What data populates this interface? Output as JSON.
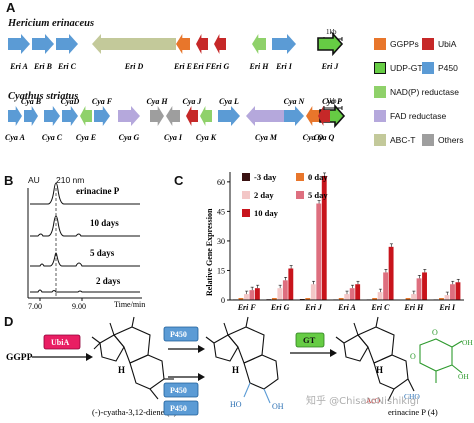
{
  "panels": {
    "a": "A",
    "b": "B",
    "c": "C",
    "d": "D"
  },
  "colors": {
    "GGPPs": "#e8762b",
    "UbiA": "#c62828",
    "UDP-GT": "#66cc44",
    "P450": "#5b9bd5",
    "NAD(P) reductase": "#8fd16a",
    "FAD reductase": "#b5a8dc",
    "ABC-T": "#c3c99a",
    "Others": "#9e9e9e"
  },
  "panel_a": {
    "scale_label": "1kb",
    "species": [
      {
        "name": "Hericium erinaceus",
        "genes": [
          {
            "id": "EriA",
            "label": "Eri A",
            "family": "P450",
            "dir": "right"
          },
          {
            "id": "EriB",
            "label": "Eri B",
            "family": "P450",
            "dir": "right"
          },
          {
            "id": "EriC",
            "label": "Eri C",
            "family": "P450",
            "dir": "right"
          },
          {
            "id": "EriD",
            "label": "Eri D",
            "family": "ABC-T",
            "dir": "left"
          },
          {
            "id": "EriE",
            "label": "Eri E",
            "family": "GGPPs",
            "dir": "left"
          },
          {
            "id": "EriF",
            "label": "Eri F",
            "family": "UbiA",
            "dir": "left"
          },
          {
            "id": "EriG",
            "label": "Eri G",
            "family": "UbiA",
            "dir": "left"
          },
          {
            "id": "EriH",
            "label": "Eri H",
            "family": "NAD(P) reductase",
            "dir": "left"
          },
          {
            "id": "EriI",
            "label": "Eri I",
            "family": "P450",
            "dir": "right"
          },
          {
            "id": "EriJ",
            "label": "Eri J",
            "family": "UDP-GT",
            "dir": "right",
            "outlined": true
          }
        ]
      },
      {
        "name": "Cyathus striatus",
        "genes": [
          {
            "id": "CyaA",
            "label": "Cya A",
            "family": "P450",
            "dir": "right"
          },
          {
            "id": "CyaB",
            "label": "Cya B",
            "family": "P450",
            "dir": "right"
          },
          {
            "id": "CyaC",
            "label": "Cya C",
            "family": "P450",
            "dir": "right"
          },
          {
            "id": "CyaD",
            "label": "CyaD",
            "family": "P450",
            "dir": "right"
          },
          {
            "id": "CyaE",
            "label": "Cya E",
            "family": "NAD(P) reductase",
            "dir": "left"
          },
          {
            "id": "CyaF",
            "label": "Cya F",
            "family": "P450",
            "dir": "right"
          },
          {
            "id": "CyaG",
            "label": "Cya G",
            "family": "FAD reductase",
            "dir": "right"
          },
          {
            "id": "CyaH",
            "label": "Cya H",
            "family": "Others",
            "dir": "right"
          },
          {
            "id": "CyaI",
            "label": "Cya I",
            "family": "Others",
            "dir": "left"
          },
          {
            "id": "CyaJ",
            "label": "Cya J",
            "family": "UbiA",
            "dir": "left"
          },
          {
            "id": "CyaK",
            "label": "Cya K",
            "family": "NAD(P) reductase",
            "dir": "left"
          },
          {
            "id": "CyaL",
            "label": "Cya L",
            "family": "P450",
            "dir": "right"
          },
          {
            "id": "CyaM",
            "label": "Cya M",
            "family": "FAD reductase",
            "dir": "left"
          },
          {
            "id": "CyaN",
            "label": "Cya N",
            "family": "P450",
            "dir": "right"
          },
          {
            "id": "CyaO",
            "label": "Cya O",
            "family": "GGPPs",
            "dir": "left"
          },
          {
            "id": "CyaP",
            "label": "Cya P",
            "family": "UDP-GT",
            "dir": "right",
            "outlined": true
          },
          {
            "id": "CyaQ",
            "label": "Cya Q",
            "family": "UbiA",
            "dir": "left"
          }
        ]
      }
    ],
    "legend": [
      {
        "label": "GGPPs",
        "family": "GGPPs",
        "shape": "square"
      },
      {
        "label": "UbiA",
        "family": "UbiA",
        "shape": "square"
      },
      {
        "label": "UDP-GT",
        "family": "UDP-GT",
        "shape": "square-outlined"
      },
      {
        "label": "P450",
        "family": "P450",
        "shape": "square"
      },
      {
        "label": "NAD(P) reductase",
        "family": "NAD(P) reductase",
        "shape": "square"
      },
      {
        "label": "FAD reductase",
        "family": "FAD reductase",
        "shape": "square"
      },
      {
        "label": "ABC-T",
        "family": "ABC-T",
        "shape": "square"
      },
      {
        "label": "Others",
        "family": "Others",
        "shape": "square"
      }
    ]
  },
  "panel_b": {
    "y_unit": "AU",
    "wavelength": "210 nm",
    "x_label": "Time/min",
    "x_ticks": [
      "7.00",
      "9.00"
    ],
    "traces": [
      {
        "label": "erinacine P"
      },
      {
        "label": "10 days"
      },
      {
        "label": "5 days"
      },
      {
        "label": "2 days"
      }
    ]
  },
  "chart_data": {
    "type": "bar",
    "ylabel": "Relative Gene Expression",
    "ylim": [
      0,
      65
    ],
    "yticks": [
      0,
      15,
      30,
      45,
      60
    ],
    "categories": [
      "Eri F",
      "Eri G",
      "Eri J",
      "Eri A",
      "Eri C",
      "Eri H",
      "Eri I"
    ],
    "legend_placement": "top-left",
    "grid": false,
    "series": [
      {
        "name": "-3 day",
        "color": "#3a1212",
        "values": [
          0.3,
          0.4,
          0.5,
          0.3,
          0.3,
          0.2,
          0.3
        ]
      },
      {
        "name": "0 day",
        "color": "#e8762b",
        "values": [
          1,
          1,
          1,
          1,
          1,
          1,
          1
        ]
      },
      {
        "name": "2 day",
        "color": "#f3c7c7",
        "values": [
          3,
          6,
          8,
          3,
          4,
          3,
          2.5
        ]
      },
      {
        "name": "5 day",
        "color": "#de6f7f",
        "values": [
          5,
          10,
          49,
          6,
          14,
          11,
          8
        ]
      },
      {
        "name": "10 day",
        "color": "#c8141c",
        "values": [
          6,
          16,
          63,
          8,
          27,
          14,
          9
        ]
      }
    ]
  },
  "panel_d": {
    "ggpp": "GGPP",
    "ubia": "UbiA",
    "p450": "P450",
    "gt": "GT",
    "compound5": "(-)-cyatha-3,12-diene (5)",
    "compound4": "erinacine P (4)",
    "h_label": "H",
    "oh": "OH",
    "ho": "HO",
    "aco": "AcO",
    "cho": "CHO",
    "o": "O"
  },
  "watermark": "知乎 @ChisatoNishikigi"
}
